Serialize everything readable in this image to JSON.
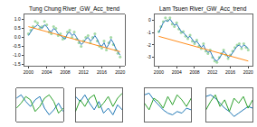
{
  "chart_data": [
    {
      "type": "line",
      "title": "Tung Chung River_GW_Acc_trend",
      "grid": false,
      "xlim": [
        1999,
        2021
      ],
      "xticks": [
        2000,
        2004,
        2008,
        2012,
        2016,
        2020
      ],
      "ylim": [
        -1.6,
        1.3
      ],
      "yticks": [
        {
          "value": -1.5,
          "label": "-1.5"
        },
        {
          "value": -1,
          "label": "-1.0"
        },
        {
          "value": -0.5,
          "label": "-0.5"
        },
        {
          "value": 0,
          "label": "0.0"
        },
        {
          "value": 0.5,
          "label": "0.5"
        },
        {
          "value": 1,
          "label": "1.0"
        }
      ],
      "series": [
        {
          "type": "scatter",
          "marker": "circle",
          "color": "#8fd18f",
          "x": [
            2000,
            2000.5,
            2001,
            2001.5,
            2002,
            2002.5,
            2003,
            2003.5,
            2004,
            2004.5,
            2005,
            2005.5,
            2006,
            2006.5,
            2007,
            2007.5,
            2008,
            2008.5,
            2009,
            2009.5,
            2010,
            2010.5,
            2011,
            2011.5,
            2012,
            2012.5,
            2013,
            2013.5,
            2014,
            2014.5,
            2015,
            2015.5,
            2016,
            2016.5,
            2017,
            2017.5,
            2018,
            2018.5,
            2019,
            2019.5,
            2020
          ],
          "values": [
            0.2,
            0.4,
            0.6,
            0.9,
            0.8,
            0.5,
            0.6,
            0.9,
            0.7,
            0.3,
            0.2,
            0.6,
            0.5,
            0.1,
            0.2,
            -0.1,
            0.0,
            0.3,
            0.4,
            0.0,
            0.3,
            -0.1,
            -0.3,
            -0.5,
            -0.2,
            0.0,
            0.1,
            -0.3,
            0.0,
            0.2,
            -0.2,
            -0.5,
            -0.6,
            -0.2,
            -0.7,
            -0.3,
            0.0,
            -0.4,
            -0.7,
            -0.9,
            -1.1
          ]
        },
        {
          "type": "line",
          "line_style": "solid",
          "color": "#2b7bba",
          "x": [
            2000,
            2000.5,
            2001,
            2001.5,
            2002,
            2002.5,
            2003,
            2003.5,
            2004,
            2004.5,
            2005,
            2005.5,
            2006,
            2006.5,
            2007,
            2007.5,
            2008,
            2008.5,
            2009,
            2009.5,
            2010,
            2010.5,
            2011,
            2011.5,
            2012,
            2012.5,
            2013,
            2013.5,
            2014,
            2014.5,
            2015,
            2015.5,
            2016,
            2016.5,
            2017,
            2017.5,
            2018,
            2018.5,
            2019,
            2019.5,
            2020
          ],
          "values": [
            0.1,
            0.3,
            0.5,
            0.6,
            0.7,
            0.6,
            0.5,
            0.7,
            0.6,
            0.4,
            0.3,
            0.5,
            0.4,
            0.2,
            0.1,
            0.0,
            -0.1,
            0.2,
            0.3,
            0.1,
            0.2,
            0.0,
            -0.2,
            -0.4,
            -0.3,
            -0.1,
            0.0,
            -0.2,
            -0.1,
            0.1,
            -0.1,
            -0.4,
            -0.5,
            -0.3,
            -0.6,
            -0.4,
            -0.1,
            -0.3,
            -0.6,
            -0.8,
            -1.0
          ]
        },
        {
          "type": "line",
          "line_style": "solid",
          "color": "#ff8c1a",
          "x": [
            2000,
            2020
          ],
          "values": [
            0.6,
            -0.8
          ]
        }
      ]
    },
    {
      "type": "line",
      "title": "Lam Tsuen River_GW_Acc_trend",
      "grid": false,
      "xlim": [
        1999,
        2021
      ],
      "xticks": [
        2000,
        2004,
        2008,
        2012,
        2016,
        2020
      ],
      "ylim": [
        -3.7,
        0.5
      ],
      "yticks": [
        -3,
        -2,
        -1,
        0
      ],
      "series": [
        {
          "type": "scatter",
          "marker": "circle",
          "color": "#8fd18f",
          "x": [
            2000,
            2000.5,
            2001,
            2001.5,
            2002,
            2002.5,
            2003,
            2003.5,
            2004,
            2004.5,
            2005,
            2005.5,
            2006,
            2006.5,
            2007,
            2007.5,
            2008,
            2008.5,
            2009,
            2009.5,
            2010,
            2010.5,
            2011,
            2011.5,
            2012,
            2012.5,
            2013,
            2013.5,
            2014,
            2014.5,
            2015,
            2015.5,
            2016,
            2016.5,
            2017,
            2017.5,
            2018,
            2018.5,
            2019,
            2019.5,
            2020
          ],
          "values": [
            -0.9,
            -0.5,
            -0.1,
            0.2,
            0.0,
            0.2,
            -0.3,
            -0.5,
            -0.2,
            -0.7,
            -1.0,
            -0.9,
            -1.3,
            -1.5,
            -1.2,
            -1.7,
            -1.9,
            -1.6,
            -2.1,
            -2.3,
            -1.9,
            -2.5,
            -2.7,
            -2.4,
            -3.0,
            -3.3,
            -3.4,
            -3.0,
            -2.7,
            -2.4,
            -2.8,
            -3.1,
            -2.8,
            -2.5,
            -2.2,
            -2.0,
            -1.9,
            -2.3,
            -1.9,
            -2.2,
            -2.4
          ]
        },
        {
          "type": "line",
          "line_style": "solid",
          "color": "#2b7bba",
          "x": [
            2000,
            2000.5,
            2001,
            2001.5,
            2002,
            2002.5,
            2003,
            2003.5,
            2004,
            2004.5,
            2005,
            2005.5,
            2006,
            2006.5,
            2007,
            2007.5,
            2008,
            2008.5,
            2009,
            2009.5,
            2010,
            2010.5,
            2011,
            2011.5,
            2012,
            2012.5,
            2013,
            2013.5,
            2014,
            2014.5,
            2015,
            2015.5,
            2016,
            2016.5,
            2017,
            2017.5,
            2018,
            2018.5,
            2019,
            2019.5,
            2020
          ],
          "values": [
            -1.0,
            -0.6,
            -0.2,
            0.0,
            -0.1,
            0.1,
            -0.2,
            -0.4,
            -0.3,
            -0.6,
            -0.9,
            -1.0,
            -1.2,
            -1.4,
            -1.3,
            -1.6,
            -1.8,
            -1.7,
            -2.0,
            -2.2,
            -2.0,
            -2.4,
            -2.6,
            -2.5,
            -2.9,
            -3.2,
            -3.3,
            -3.1,
            -2.8,
            -2.5,
            -2.7,
            -3.0,
            -2.9,
            -2.6,
            -2.3,
            -2.1,
            -2.0,
            -2.2,
            -2.0,
            -2.1,
            -2.3
          ]
        },
        {
          "type": "line",
          "line_style": "solid",
          "color": "#ff8c1a",
          "x": [
            2000,
            2020
          ],
          "values": [
            -1.3,
            -3.3
          ]
        }
      ]
    },
    {
      "type": "line",
      "tick_labels": false,
      "grid": false,
      "xlim": [
        2000,
        2020
      ],
      "ylim": [
        -1,
        1
      ],
      "series": [
        {
          "type": "line",
          "color": "#1f77b4",
          "x": [
            2000,
            2002,
            2004,
            2006,
            2008,
            2010,
            2012,
            2014,
            2016,
            2018,
            2020
          ],
          "values": [
            0.4,
            0.6,
            0.2,
            -0.1,
            0.3,
            0.5,
            -0.2,
            -0.6,
            -0.3,
            0.1,
            -0.4
          ]
        },
        {
          "type": "line",
          "color": "#2ca02c",
          "x": [
            2000,
            2002,
            2004,
            2006,
            2008,
            2010,
            2012,
            2014,
            2016,
            2018,
            2020
          ],
          "values": [
            -0.2,
            0.1,
            0.5,
            0.3,
            -0.4,
            -0.1,
            0.4,
            0.6,
            0.2,
            -0.5,
            -0.2
          ]
        }
      ]
    },
    {
      "type": "line",
      "tick_labels": false,
      "grid": false,
      "xlim": [
        2000,
        2020
      ],
      "ylim": [
        -1,
        1
      ],
      "series": [
        {
          "type": "line",
          "color": "#1f77b4",
          "x": [
            2000,
            2002,
            2004,
            2006,
            2008,
            2010,
            2012,
            2014,
            2016,
            2018,
            2020
          ],
          "values": [
            0.5,
            0.2,
            0.6,
            0.1,
            -0.3,
            0.2,
            -0.5,
            -0.2,
            -0.6,
            0.0,
            -0.3
          ]
        },
        {
          "type": "line",
          "color": "#2ca02c",
          "x": [
            2000,
            2002,
            2004,
            2006,
            2008,
            2010,
            2012,
            2014,
            2016,
            2018,
            2020
          ],
          "values": [
            -0.4,
            0.3,
            -0.1,
            0.4,
            0.6,
            -0.2,
            0.1,
            0.5,
            -0.1,
            0.4,
            0.7
          ]
        }
      ]
    },
    {
      "type": "line",
      "tick_labels": false,
      "grid": false,
      "xlim": [
        2000,
        2020
      ],
      "ylim": [
        -1,
        1
      ],
      "series": [
        {
          "type": "line",
          "color": "#1f77b4",
          "x": [
            2000,
            2002,
            2004,
            2006,
            2008,
            2010,
            2012,
            2014,
            2016,
            2018,
            2020
          ],
          "values": [
            0.6,
            0.7,
            0.3,
            0.0,
            -0.3,
            -0.5,
            -0.6,
            -0.4,
            -0.5,
            -0.2,
            -0.3
          ]
        },
        {
          "type": "line",
          "color": "#2ca02c",
          "x": [
            2000,
            2002,
            2004,
            2006,
            2008,
            2010,
            2012,
            2014,
            2016,
            2018,
            2020
          ],
          "values": [
            0.1,
            -0.3,
            0.4,
            0.2,
            -0.2,
            0.5,
            0.0,
            0.6,
            0.3,
            -0.1,
            0.4
          ]
        }
      ]
    },
    {
      "type": "line",
      "tick_labels": false,
      "grid": false,
      "xlim": [
        2000,
        2020
      ],
      "ylim": [
        -1,
        1
      ],
      "series": [
        {
          "type": "line",
          "color": "#1f77b4",
          "x": [
            2000,
            2002,
            2004,
            2006,
            2008,
            2010,
            2012,
            2014,
            2016,
            2018,
            2020
          ],
          "values": [
            0.5,
            0.6,
            0.4,
            0.1,
            -0.2,
            -0.4,
            -0.7,
            -0.5,
            -0.3,
            -0.1,
            -0.2
          ]
        },
        {
          "type": "line",
          "color": "#2ca02c",
          "x": [
            2000,
            2002,
            2004,
            2006,
            2008,
            2010,
            2012,
            2014,
            2016,
            2018,
            2020
          ],
          "values": [
            -0.3,
            0.2,
            0.6,
            -0.1,
            0.3,
            -0.4,
            0.4,
            0.1,
            0.5,
            -0.2,
            0.3
          ]
        }
      ]
    }
  ]
}
